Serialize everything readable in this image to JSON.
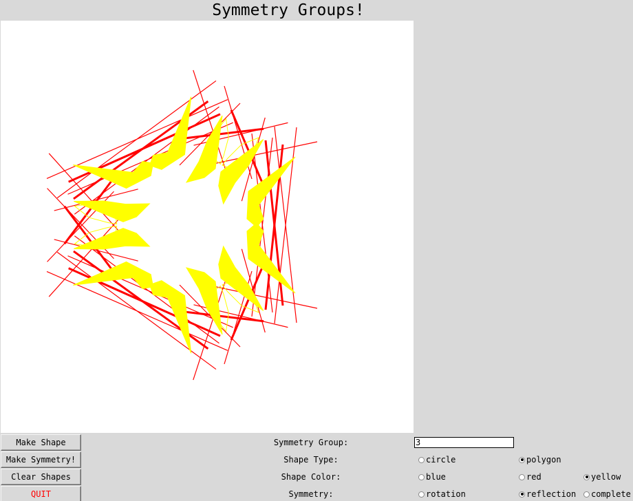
{
  "window": {
    "title": "Symmetry Groups!"
  },
  "buttons": {
    "make_shape": "Make Shape",
    "make_symmetry": "Make Symmetry!",
    "clear_shapes": "Clear Shapes",
    "quit": "QUIT"
  },
  "controls": {
    "symmetry_group": {
      "label": "Symmetry Group:",
      "value": "3"
    },
    "shape_type": {
      "label": "Shape Type:",
      "options": [
        "circle",
        "polygon"
      ],
      "selected": "polygon"
    },
    "shape_color": {
      "label": "Shape Color:",
      "options": [
        "blue",
        "red",
        "yellow"
      ],
      "selected": "yellow"
    },
    "symmetry": {
      "label": "Symmetry:",
      "options": [
        "rotation",
        "reflection",
        "complete"
      ],
      "selected": "reflection"
    }
  },
  "colors": {
    "background": "#d9d9d9",
    "canvas": "#ffffff",
    "shape_yellow": "#ffff00",
    "shape_red": "#ff0000",
    "quit_text": "#ff0000"
  }
}
